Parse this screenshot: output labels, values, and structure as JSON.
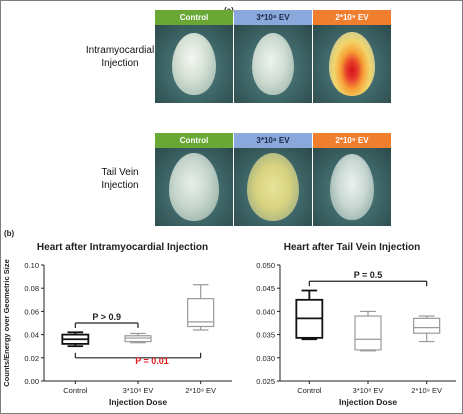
{
  "panel_a_label": "(a)",
  "panel_b_label": "(b)",
  "columns": [
    "Control",
    "3*10⁸ EV",
    "2*10⁹ EV"
  ],
  "rows": [
    {
      "label_line1": "Intramyocardial",
      "label_line2": "Injection"
    },
    {
      "label_line1": "Tail Vein",
      "label_line2": "Injection"
    }
  ],
  "colors": {
    "control": "#6aa836",
    "low_dose": "#8aa8dc",
    "high_dose": "#ef7e2f",
    "sig_red": "#e0191f"
  },
  "chart_data": [
    {
      "type": "boxplot",
      "title": "Heart after Intramyocardial Injection",
      "xlabel": "Injection Dose",
      "ylabel": "Counts/Energy over Geometric Size",
      "categories": [
        "Control",
        "3*10⁸ EV",
        "2*10⁹ EV"
      ],
      "ylim": [
        0,
        0.1
      ],
      "yticks": [
        "0.00",
        "0.02",
        "0.04",
        "0.06",
        "0.08",
        "0.10"
      ],
      "ytick_values": [
        0,
        0.02,
        0.04,
        0.06,
        0.08,
        0.1
      ],
      "boxes": [
        {
          "min": 0.03,
          "q1": 0.032,
          "median": 0.036,
          "q3": 0.04,
          "max": 0.042
        },
        {
          "min": 0.033,
          "q1": 0.034,
          "median": 0.037,
          "q3": 0.039,
          "max": 0.041
        },
        {
          "min": 0.044,
          "q1": 0.047,
          "median": 0.051,
          "q3": 0.071,
          "max": 0.083
        }
      ],
      "annotations": [
        {
          "text": "P > 0.9",
          "from": 0,
          "to": 1,
          "y": 0.05,
          "color": "#222222"
        },
        {
          "text": "P = 0.01",
          "from": 0,
          "to": 2,
          "y": 0.02,
          "color": "#e0191f"
        }
      ]
    },
    {
      "type": "boxplot",
      "title": "Heart after Tail Vein Injection",
      "xlabel": "Injection Dose",
      "ylabel": "",
      "categories": [
        "Control",
        "3*10⁸ EV",
        "2*10⁹ EV"
      ],
      "ylim": [
        0.025,
        0.05
      ],
      "yticks": [
        "0.025",
        "0.030",
        "0.035",
        "0.040",
        "0.045",
        "0.050"
      ],
      "ytick_values": [
        0.025,
        0.03,
        0.035,
        0.04,
        0.045,
        0.05
      ],
      "boxes": [
        {
          "min": 0.034,
          "q1": 0.0343,
          "median": 0.0385,
          "q3": 0.0425,
          "max": 0.0445
        },
        {
          "min": 0.0315,
          "q1": 0.0317,
          "median": 0.034,
          "q3": 0.039,
          "max": 0.04
        },
        {
          "min": 0.0335,
          "q1": 0.0353,
          "median": 0.0365,
          "q3": 0.0385,
          "max": 0.039
        }
      ],
      "annotations": [
        {
          "text": "P = 0.5",
          "from": 0,
          "to": 2,
          "y": 0.0465,
          "color": "#222222"
        }
      ]
    }
  ]
}
